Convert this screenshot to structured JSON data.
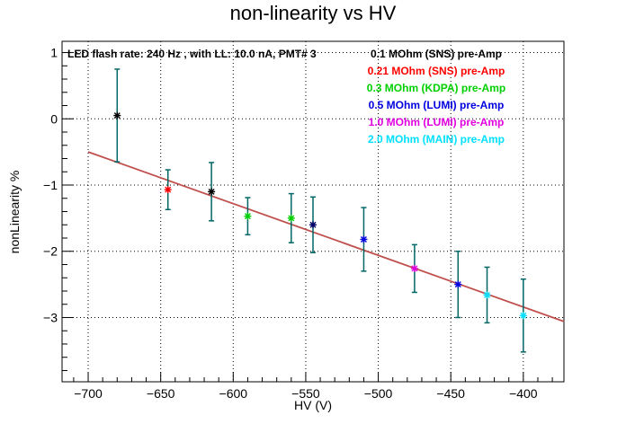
{
  "chart_data": {
    "type": "scatter",
    "title": "non-linearity vs HV",
    "xlabel": "HV (V)",
    "ylabel": "nonLinearity %",
    "xlim": [
      -718,
      -372
    ],
    "ylim": [
      -3.97,
      1.17
    ],
    "x_ticks": [
      -700,
      -650,
      -600,
      -550,
      -500,
      -450,
      -400
    ],
    "x_tick_labels": [
      "−700",
      "−650",
      "−600",
      "−550",
      "−500",
      "−450",
      "−400"
    ],
    "y_ticks": [
      1,
      0,
      -1,
      -2,
      -3
    ],
    "y_tick_labels": [
      "1",
      "0",
      "−1",
      "−2",
      "−3"
    ],
    "grid": true,
    "annotation": "LED flash rate: 240 Hz , with LL: 10.0 nA, PMT# 3",
    "legend": [
      {
        "label": "0.1 MOhm (SNS) pre-Amp",
        "color": "#000000"
      },
      {
        "label": "0.21 MOhm (SNS) pre-Amp",
        "color": "#ff0000"
      },
      {
        "label": "0.3 MOhm (KDPA) pre-Amp",
        "color": "#00d000"
      },
      {
        "label": "0.5 MOhm (LUMI) pre-Amp",
        "color": "#0000e0"
      },
      {
        "label": "1.0 MOhm (LUMI) pre-Amp",
        "color": "#e000e0"
      },
      {
        "label": "2.0 MOhm (MAIN) pre-Amp",
        "color": "#00e0ff"
      }
    ],
    "legend_placement": "top-right",
    "fit_line": {
      "x": [
        -700,
        -372
      ],
      "y": [
        -0.5,
        -3.06
      ],
      "color": "#c0504d"
    },
    "error_bar_color": "#006666",
    "points": [
      {
        "x": -680,
        "y": 0.05,
        "err": 0.7,
        "color": "#000000"
      },
      {
        "x": -645,
        "y": -1.07,
        "err": 0.3,
        "color": "#ff0000"
      },
      {
        "x": -615,
        "y": -1.1,
        "err": 0.44,
        "color": "#000000"
      },
      {
        "x": -590,
        "y": -1.47,
        "err": 0.28,
        "color": "#00d000"
      },
      {
        "x": -560,
        "y": -1.5,
        "err": 0.37,
        "color": "#00d000"
      },
      {
        "x": -545,
        "y": -1.6,
        "err": 0.42,
        "color": "#000066"
      },
      {
        "x": -510,
        "y": -1.82,
        "err": 0.48,
        "color": "#0000e0"
      },
      {
        "x": -475,
        "y": -2.26,
        "err": 0.36,
        "color": "#e000e0"
      },
      {
        "x": -445,
        "y": -2.5,
        "err": 0.5,
        "color": "#0000e0"
      },
      {
        "x": -425,
        "y": -2.66,
        "err": 0.42,
        "color": "#00e0ff"
      },
      {
        "x": -400,
        "y": -2.97,
        "err": 0.55,
        "color": "#00e0ff"
      }
    ]
  }
}
